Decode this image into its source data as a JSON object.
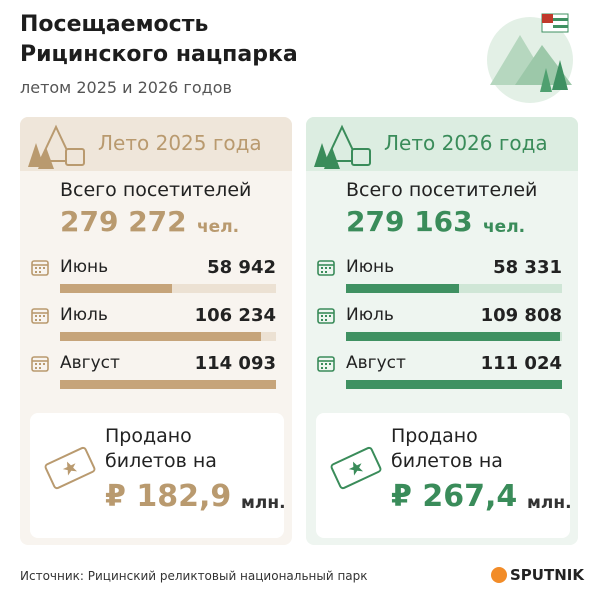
{
  "header": {
    "title_lines": [
      "Посещаемость",
      "Рицинского нацпарка"
    ],
    "subtitle": "летом 2025 и 2026 годов"
  },
  "cards": [
    {
      "title": "Лето 2025 года",
      "total_label": "Всего посетителей",
      "total_value": "279 272",
      "total_unit": "чел.",
      "months": [
        {
          "name": "Июнь",
          "value": 58942,
          "label": "58 942"
        },
        {
          "name": "Июль",
          "value": 106234,
          "label": "106 234"
        },
        {
          "name": "Август",
          "value": 114093,
          "label": "114 093"
        }
      ],
      "sold_lines": [
        "Продано",
        "билетов на"
      ],
      "sold_value": "₽ 182,9",
      "sold_unit": "млн."
    },
    {
      "title": "Лето 2026 года",
      "total_label": "Всего посетителей",
      "total_value": "279 163",
      "total_unit": "чел.",
      "months": [
        {
          "name": "Июнь",
          "value": 58331,
          "label": "58 331"
        },
        {
          "name": "Июль",
          "value": 109808,
          "label": "109 808"
        },
        {
          "name": "Август",
          "value": 111024,
          "label": "111 024"
        }
      ],
      "sold_lines": [
        "Продано",
        "билетов на"
      ],
      "sold_value": "₽ 267,4",
      "sold_unit": "млн."
    }
  ],
  "footer": {
    "source": "Источник: Рицинский реликтовый национальный парк",
    "brand": "SPUTNIK"
  }
}
